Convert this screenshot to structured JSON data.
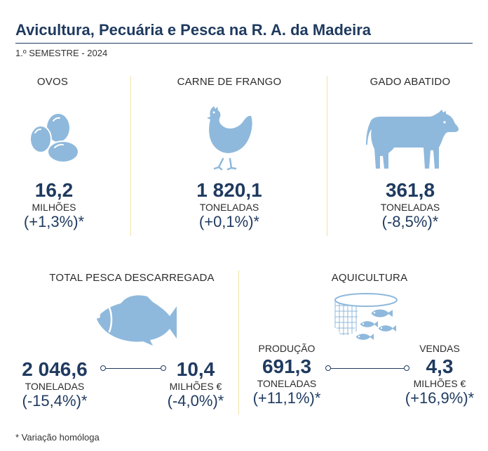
{
  "header": {
    "title": "Avicultura, Pecuária e Pesca na R. A. da Madeira",
    "subtitle": "1.º SEMESTRE - 2024"
  },
  "colors": {
    "primary": "#1f3a5f",
    "icon": "#8fb9dc",
    "divider": "#f1e3a6"
  },
  "ovos": {
    "label": "OVOS",
    "icon": "eggs-icon",
    "value": "16,2",
    "unit": "MILHÕES",
    "variation": "(+1,3%)*"
  },
  "frango": {
    "label": "CARNE DE FRANGO",
    "icon": "chicken-icon",
    "value": "1 820,1",
    "unit": "TONELADAS",
    "variation": "(+0,1%)*"
  },
  "gado": {
    "label": "GADO ABATIDO",
    "icon": "cow-icon",
    "value": "361,8",
    "unit": "TONELADAS",
    "variation": "(-8,5%)*"
  },
  "pesca": {
    "label": "TOTAL PESCA DESCARREGADA",
    "icon": "fish-icon",
    "left": {
      "value": "2 046,6",
      "unit": "TONELADAS",
      "variation": "(-15,4%)*"
    },
    "right": {
      "value": "10,4",
      "unit": "MILHÕES €",
      "variation": "(-4,0%)*"
    }
  },
  "aquicultura": {
    "label": "AQUICULTURA",
    "icon": "fish-cage-icon",
    "left": {
      "caption": "PRODUÇÃO",
      "value": "691,3",
      "unit": "TONELADAS",
      "variation": "(+11,1%)*"
    },
    "right": {
      "caption": "VENDAS",
      "value": "4,3",
      "unit": "MILHÕES €",
      "variation": "(+16,9%)*"
    }
  },
  "footnote": "* Variação homóloga"
}
